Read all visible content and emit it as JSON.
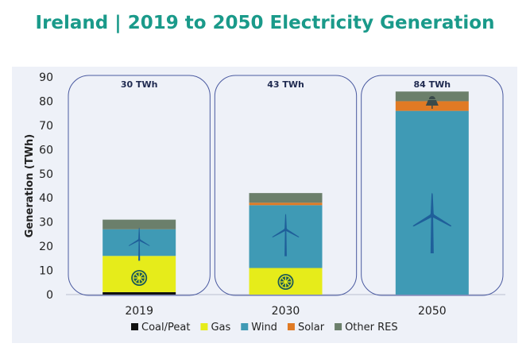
{
  "title": "Ireland | 2019 to 2050 Electricity Generation",
  "chart_data": {
    "type": "bar",
    "stacked": true,
    "categories": [
      "2019",
      "2030",
      "2050"
    ],
    "totals": [
      "30 TWh",
      "43 TWh",
      "84 TWh"
    ],
    "ylabel": "Generation (TWh)",
    "ylim": [
      0,
      90
    ],
    "yticks": [
      0,
      10,
      20,
      30,
      40,
      50,
      60,
      70,
      80,
      90
    ],
    "series": [
      {
        "name": "Coal/Peat",
        "color": "#111111",
        "values": [
          1,
          0,
          0
        ]
      },
      {
        "name": "Gas",
        "color": "#e6ec1a",
        "values": [
          15,
          11,
          0
        ]
      },
      {
        "name": "Wind",
        "color": "#3f9ab5",
        "values": [
          11,
          26,
          76
        ]
      },
      {
        "name": "Solar",
        "color": "#e07a24",
        "values": [
          0,
          1,
          4
        ]
      },
      {
        "name": "Other RES",
        "color": "#6b7f6b",
        "values": [
          4,
          4,
          4
        ]
      }
    ],
    "icons": [
      {
        "category": "2019",
        "items": [
          "wind-turbine-icon",
          "gas-turbine-icon"
        ]
      },
      {
        "category": "2030",
        "items": [
          "wind-turbine-icon",
          "gas-turbine-icon"
        ]
      },
      {
        "category": "2050",
        "items": [
          "wind-turbine-icon",
          "solar-icon"
        ]
      }
    ],
    "legend_position": "bottom"
  }
}
